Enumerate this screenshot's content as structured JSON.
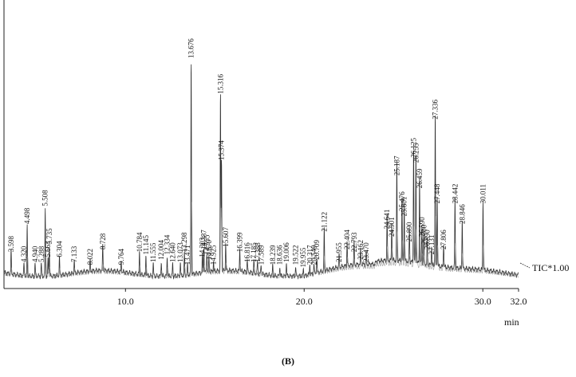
{
  "caption": "(B)",
  "chart_data": {
    "type": "line",
    "xlabel": "min",
    "trace_label": "TIC*1.00",
    "xlim": [
      3.2,
      32.0
    ],
    "ylim": [
      0,
      100
    ],
    "x_ticks": [
      {
        "value": 10.0,
        "label": "10.0"
      },
      {
        "value": 20.0,
        "label": "20.0"
      },
      {
        "value": 30.0,
        "label": "30.0"
      },
      {
        "value": 32.0,
        "label": "32.0"
      }
    ],
    "peaks": [
      {
        "rt": 3.598,
        "label": "3.598",
        "height": 9
      },
      {
        "rt": 4.32,
        "label": "4.320",
        "height": 5
      },
      {
        "rt": 4.498,
        "label": "4.498",
        "height": 20
      },
      {
        "rt": 4.94,
        "label": "4.940",
        "height": 5
      },
      {
        "rt": 5.288,
        "label": "5.288",
        "height": 5
      },
      {
        "rt": 5.508,
        "label": "5.508",
        "height": 27
      },
      {
        "rt": 5.663,
        "label": "5.663",
        "height": 7
      },
      {
        "rt": 5.735,
        "label": "5.735",
        "height": 12
      },
      {
        "rt": 6.304,
        "label": "6.304",
        "height": 7
      },
      {
        "rt": 7.133,
        "label": "7.133",
        "height": 5
      },
      {
        "rt": 8.022,
        "label": "8.022",
        "height": 4
      },
      {
        "rt": 8.728,
        "label": "8.728",
        "height": 10
      },
      {
        "rt": 9.764,
        "label": "9.764",
        "height": 4
      },
      {
        "rt": 10.784,
        "label": "10.784",
        "height": 9
      },
      {
        "rt": 11.145,
        "label": "11.145",
        "height": 8
      },
      {
        "rt": 11.555,
        "label": "11.555",
        "height": 5
      },
      {
        "rt": 12.004,
        "label": "12.004",
        "height": 6
      },
      {
        "rt": 12.334,
        "label": "12.334",
        "height": 8
      },
      {
        "rt": 12.64,
        "label": "12.640",
        "height": 5
      },
      {
        "rt": 13.073,
        "label": "13.073",
        "height": 5
      },
      {
        "rt": 13.298,
        "label": "13.298",
        "height": 9
      },
      {
        "rt": 13.471,
        "label": "13.471",
        "height": 4
      },
      {
        "rt": 13.676,
        "label": "13.676",
        "height": 85
      },
      {
        "rt": 14.303,
        "label": "14.303",
        "height": 7
      },
      {
        "rt": 14.387,
        "label": "14.387",
        "height": 10
      },
      {
        "rt": 14.555,
        "label": "14.555",
        "height": 8
      },
      {
        "rt": 14.67,
        "label": "14.670",
        "height": 6
      },
      {
        "rt": 14.925,
        "label": "14.925",
        "height": 4
      },
      {
        "rt": 15.316,
        "label": "15.316",
        "height": 71
      },
      {
        "rt": 15.374,
        "label": "15.374",
        "height": 45
      },
      {
        "rt": 15.607,
        "label": "15.607",
        "height": 11
      },
      {
        "rt": 16.399,
        "label": "16.399",
        "height": 9
      },
      {
        "rt": 16.816,
        "label": "16.816",
        "height": 5
      },
      {
        "rt": 17.185,
        "label": "17.185",
        "height": 5
      },
      {
        "rt": 17.388,
        "label": "17.388",
        "height": 5
      },
      {
        "rt": 17.589,
        "label": "17.589",
        "height": 4
      },
      {
        "rt": 18.239,
        "label": "18.239",
        "height": 4
      },
      {
        "rt": 18.636,
        "label": "18.636",
        "height": 4
      },
      {
        "rt": 19.006,
        "label": "19.006",
        "height": 5
      },
      {
        "rt": 19.522,
        "label": "19.522",
        "height": 4
      },
      {
        "rt": 19.955,
        "label": "19.955",
        "height": 3
      },
      {
        "rt": 20.317,
        "label": "20.317",
        "height": 4
      },
      {
        "rt": 20.549,
        "label": "20.549",
        "height": 4
      },
      {
        "rt": 20.709,
        "label": "20.709",
        "height": 6
      },
      {
        "rt": 21.122,
        "label": "21.122",
        "height": 17
      },
      {
        "rt": 21.955,
        "label": "21.955",
        "height": 5
      },
      {
        "rt": 22.404,
        "label": "22.404",
        "height": 10
      },
      {
        "rt": 22.793,
        "label": "22.793",
        "height": 9
      },
      {
        "rt": 23.162,
        "label": "23.162",
        "height": 6
      },
      {
        "rt": 23.47,
        "label": "23.470",
        "height": 5
      },
      {
        "rt": 24.641,
        "label": "24.641",
        "height": 18
      },
      {
        "rt": 24.901,
        "label": "24.901",
        "height": 15
      },
      {
        "rt": 25.187,
        "label": "25.187",
        "height": 39
      },
      {
        "rt": 25.476,
        "label": "25.476",
        "height": 25
      },
      {
        "rt": 25.601,
        "label": "25.601",
        "height": 23
      },
      {
        "rt": 25.89,
        "label": "25.890",
        "height": 13
      },
      {
        "rt": 26.125,
        "label": "26.125",
        "height": 46
      },
      {
        "rt": 26.255,
        "label": "26.255",
        "height": 44
      },
      {
        "rt": 26.459,
        "label": "26.459",
        "height": 34
      },
      {
        "rt": 26.59,
        "label": "26.590",
        "height": 15
      },
      {
        "rt": 26.7,
        "label": "26.700",
        "height": 12
      },
      {
        "rt": 26.89,
        "label": "26.890",
        "height": 10
      },
      {
        "rt": 27.131,
        "label": "27.131",
        "height": 8
      },
      {
        "rt": 27.336,
        "label": "27.336",
        "height": 61
      },
      {
        "rt": 27.448,
        "label": "27.448",
        "height": 28
      },
      {
        "rt": 27.806,
        "label": "27.806",
        "height": 10
      },
      {
        "rt": 28.442,
        "label": "28.442",
        "height": 28
      },
      {
        "rt": 28.846,
        "label": "28.846",
        "height": 20
      },
      {
        "rt": 30.011,
        "label": "30.011",
        "height": 28
      }
    ]
  }
}
